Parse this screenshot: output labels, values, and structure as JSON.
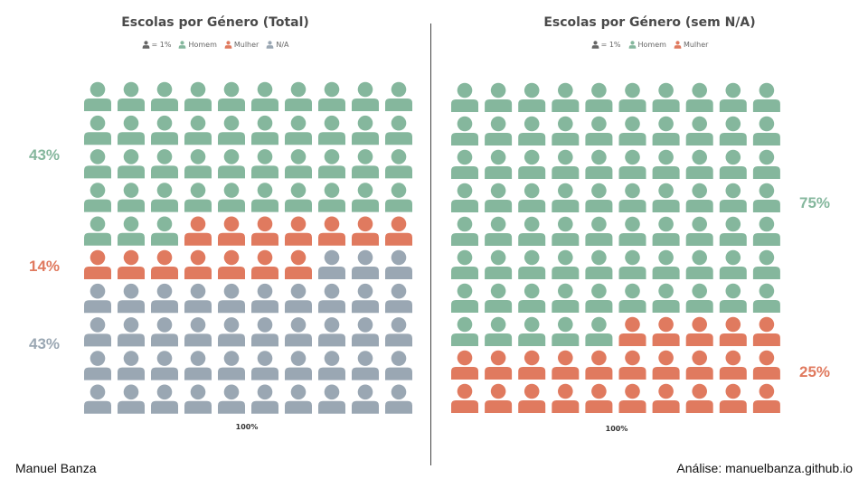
{
  "chart_data": [
    {
      "type": "waffle",
      "title": "Escolas por Género (Total)",
      "unit_legend": "= 1%",
      "legend": [
        {
          "name": "Homem",
          "color": "#85b79d"
        },
        {
          "name": "Mulher",
          "color": "#e07a5f"
        },
        {
          "name": "N/A",
          "color": "#9aa7b3"
        }
      ],
      "series": [
        {
          "name": "Homem",
          "value": 43,
          "label": "43%"
        },
        {
          "name": "Mulher",
          "value": 14,
          "label": "14%"
        },
        {
          "name": "N/A",
          "value": 43,
          "label": "43%"
        }
      ],
      "xlabel": "100%",
      "total": 100
    },
    {
      "type": "waffle",
      "title": "Escolas por Género (sem N/A)",
      "unit_legend": "= 1%",
      "legend": [
        {
          "name": "Homem",
          "color": "#85b79d"
        },
        {
          "name": "Mulher",
          "color": "#e07a5f"
        }
      ],
      "series": [
        {
          "name": "Homem",
          "value": 75,
          "label": "75%"
        },
        {
          "name": "Mulher",
          "value": 25,
          "label": "25%"
        }
      ],
      "xlabel": "100%",
      "total": 100
    }
  ],
  "colors": {
    "unit_icon": "#666666"
  },
  "credits": {
    "author": "Manuel Banza",
    "source": "Análise: manuelbanza.github.io"
  }
}
